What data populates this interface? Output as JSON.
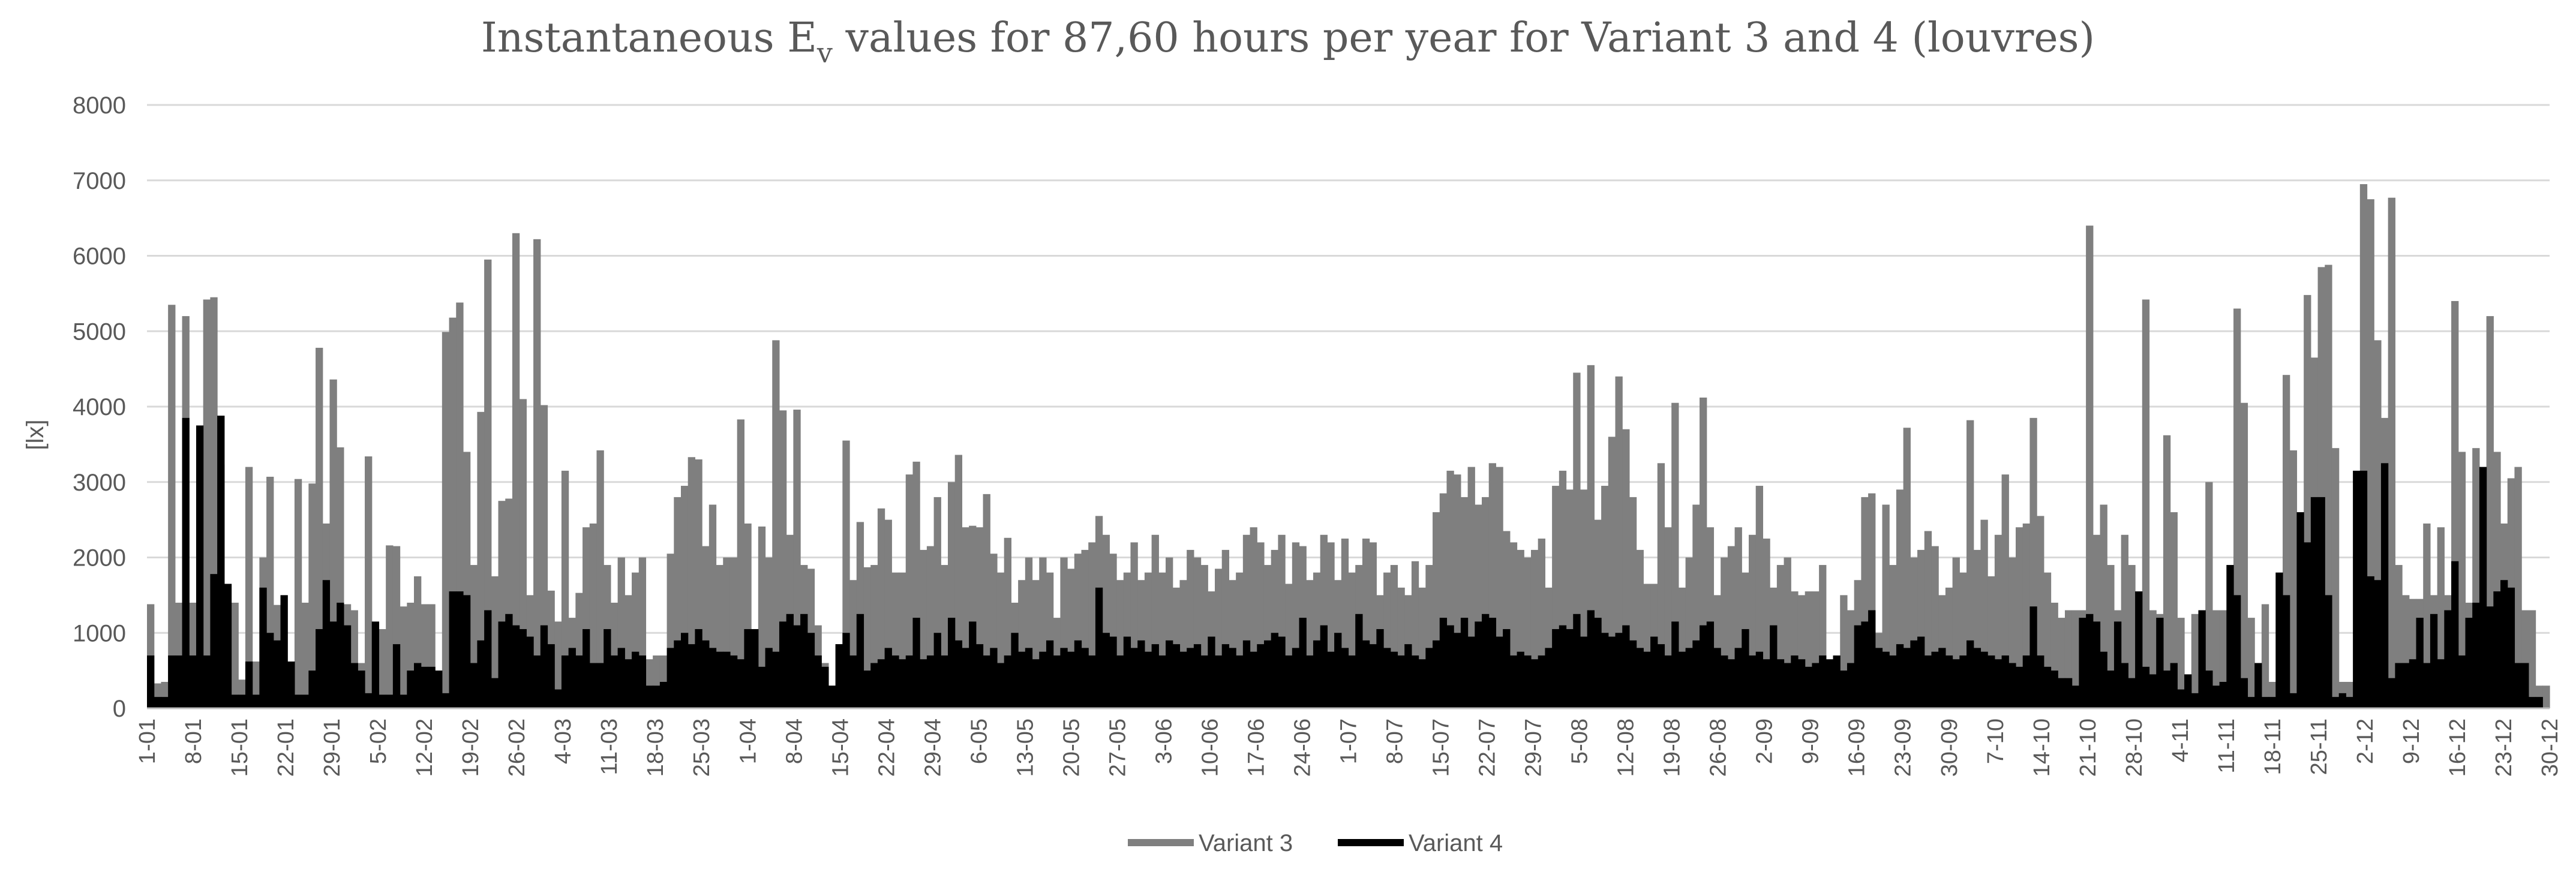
{
  "chart_data": {
    "type": "bar",
    "title": {
      "prefix": "Instantaneous E",
      "subscript": "v",
      "suffix": " values for 87,60 hours per year for Variant 3 and 4 (louvres)"
    },
    "xlabel": "",
    "ylabel": "[lx]",
    "ylim": [
      0,
      8000
    ],
    "yticks": [
      0,
      1000,
      2000,
      3000,
      4000,
      5000,
      6000,
      7000,
      8000
    ],
    "grid": true,
    "legend_position": "bottom-center",
    "x_tick_labels": [
      "1-01",
      "8-01",
      "15-01",
      "22-01",
      "29-01",
      "5-02",
      "12-02",
      "19-02",
      "26-02",
      "4-03",
      "11-03",
      "18-03",
      "25-03",
      "1-04",
      "8-04",
      "15-04",
      "22-04",
      "29-04",
      "6-05",
      "13-05",
      "20-05",
      "27-05",
      "3-06",
      "10-06",
      "17-06",
      "24-06",
      "1-07",
      "8-07",
      "15-07",
      "22-07",
      "29-07",
      "5-08",
      "12-08",
      "19-08",
      "26-08",
      "2-09",
      "9-09",
      "16-09",
      "23-09",
      "30-09",
      "7-10",
      "14-10",
      "21-10",
      "28-10",
      "4-11",
      "11-11",
      "18-11",
      "25-11",
      "2-12",
      "9-12",
      "16-12",
      "23-12",
      "30-12"
    ],
    "series": [
      {
        "name": "Variant 3",
        "color": "#7f7f7f",
        "values": [
          1380,
          330,
          350,
          5350,
          1400,
          5200,
          1400,
          2780,
          5420,
          5450,
          3230,
          500,
          1400,
          380,
          3200,
          620,
          2000,
          3070,
          1370,
          380,
          380,
          3040,
          1400,
          2980,
          4780,
          2450,
          4360,
          3460,
          1380,
          1300,
          600,
          3340,
          470,
          1050,
          2160,
          2150,
          1350,
          1400,
          1750,
          1380,
          1380,
          500,
          4990,
          5180,
          5380,
          3400,
          1900,
          3930,
          5950,
          1750,
          2750,
          2780,
          6300,
          4100,
          1500,
          6220,
          4020,
          1560,
          1150,
          3150,
          1200,
          1530,
          2400,
          2450,
          3420,
          1900,
          1400,
          2000,
          1500,
          1800,
          2000,
          650,
          700,
          700,
          2050,
          2800,
          2950,
          3330,
          3300,
          2150,
          2700,
          1900,
          2000,
          2000,
          3830,
          2450,
          850,
          2410,
          2000,
          4880,
          3950,
          2300,
          3960,
          1900,
          1850,
          1100,
          600,
          300,
          850,
          3550,
          1700,
          2470,
          1870,
          1900,
          2650,
          2500,
          1800,
          1800,
          3100,
          3270,
          2100,
          2150,
          2800,
          1900,
          3000,
          3360,
          2400,
          2420,
          2400,
          2840,
          2050,
          1800,
          2260,
          1400,
          1700,
          2000,
          1700,
          2000,
          1800,
          1200,
          2000,
          1850,
          2050,
          2100,
          2200,
          2550,
          2300,
          2050,
          1700,
          1800,
          2200,
          1700,
          1800,
          2300,
          1800,
          2000,
          1600,
          1700,
          2100,
          2000,
          1900,
          1550,
          1850,
          2100,
          1700,
          1800,
          2300,
          2400,
          2200,
          1900,
          2100,
          2300,
          1650,
          2200,
          2150,
          1700,
          1800,
          2300,
          2200,
          1700,
          2250,
          1800,
          1900,
          2250,
          2200,
          1500,
          1800,
          1900,
          1600,
          1500,
          1950,
          1600,
          1900,
          2600,
          2850,
          3150,
          3100,
          2800,
          3200,
          2700,
          2800,
          3250,
          3200,
          2350,
          2200,
          2100,
          2000,
          2100,
          2250,
          1600,
          2950,
          3150,
          2900,
          4450,
          2900,
          4550,
          2500,
          2950,
          3600,
          4400,
          3700,
          2800,
          2100,
          1650,
          1650,
          3250,
          2400,
          4050,
          1600,
          2000,
          2700,
          4120,
          2400,
          1500,
          2000,
          2150,
          2400,
          1800,
          2300,
          2950,
          2250,
          1600,
          1900,
          2000,
          1550,
          1500,
          1550,
          1550,
          1900,
          600,
          600,
          1500,
          1300,
          1700,
          2800,
          2850,
          1000,
          2700,
          1900,
          2900,
          3720,
          2000,
          2100,
          2350,
          2150,
          1500,
          1600,
          2000,
          1800,
          3820,
          2100,
          2500,
          1750,
          2300,
          3100,
          2000,
          2400,
          2450,
          3850,
          2550,
          1800,
          1400,
          1200,
          1300,
          1300,
          1300,
          6400,
          2300,
          2700,
          1900,
          1300,
          2300,
          1900,
          1300,
          5420,
          1300,
          1250,
          3620,
          2600,
          1200,
          350,
          1250,
          300,
          3000,
          1300,
          1300,
          1200,
          5300,
          4050,
          1200,
          300,
          1380,
          350,
          350,
          4420,
          3420,
          300,
          5480,
          4650,
          5850,
          5880,
          3450,
          350,
          350,
          300,
          6950,
          6750,
          4880,
          3850,
          6770,
          1900,
          1500,
          1450,
          1450,
          2450,
          1500,
          2400,
          1500,
          5400,
          3400,
          1400,
          3450,
          2600,
          5200,
          3400,
          2450,
          3050,
          3200,
          1300,
          1300,
          300,
          300
        ]
      },
      {
        "name": "Variant 4",
        "color": "#000000",
        "values": [
          700,
          150,
          150,
          700,
          700,
          3850,
          700,
          3750,
          700,
          1780,
          3880,
          1650,
          180,
          180,
          620,
          180,
          1600,
          1000,
          900,
          1500,
          620,
          180,
          180,
          500,
          1050,
          1700,
          1150,
          1400,
          1100,
          600,
          500,
          200,
          1150,
          180,
          180,
          850,
          180,
          500,
          600,
          550,
          550,
          500,
          200,
          1550,
          1550,
          1500,
          600,
          900,
          1300,
          400,
          1150,
          1250,
          1100,
          1050,
          950,
          700,
          1100,
          850,
          250,
          700,
          800,
          700,
          1050,
          600,
          600,
          1050,
          700,
          800,
          650,
          750,
          700,
          300,
          300,
          350,
          800,
          900,
          1000,
          850,
          1050,
          900,
          800,
          750,
          750,
          700,
          650,
          1050,
          1050,
          550,
          800,
          750,
          1150,
          1250,
          1100,
          1250,
          1000,
          700,
          550,
          300,
          850,
          1000,
          700,
          1250,
          500,
          600,
          650,
          800,
          700,
          650,
          700,
          1200,
          650,
          700,
          1000,
          700,
          1200,
          900,
          800,
          1150,
          850,
          700,
          800,
          600,
          700,
          1000,
          750,
          800,
          650,
          750,
          900,
          700,
          800,
          750,
          900,
          800,
          700,
          1600,
          1000,
          950,
          700,
          950,
          800,
          900,
          750,
          850,
          700,
          900,
          850,
          750,
          800,
          850,
          700,
          950,
          700,
          850,
          800,
          700,
          900,
          750,
          850,
          900,
          1000,
          950,
          700,
          800,
          1200,
          700,
          900,
          1100,
          750,
          1000,
          800,
          700,
          1250,
          900,
          850,
          1050,
          800,
          750,
          700,
          850,
          700,
          650,
          800,
          900,
          1200,
          1100,
          1000,
          1200,
          950,
          1150,
          1250,
          1200,
          950,
          1050,
          700,
          750,
          700,
          650,
          700,
          800,
          1050,
          1100,
          1050,
          1250,
          950,
          1300,
          1200,
          1000,
          950,
          1000,
          1100,
          900,
          800,
          750,
          950,
          850,
          700,
          1150,
          750,
          800,
          900,
          1100,
          1150,
          800,
          700,
          650,
          800,
          1050,
          700,
          750,
          650,
          1100,
          650,
          600,
          700,
          650,
          550,
          600,
          700,
          650,
          700,
          500,
          600,
          1100,
          1150,
          1300,
          800,
          750,
          700,
          850,
          800,
          900,
          950,
          700,
          750,
          800,
          700,
          650,
          700,
          900,
          800,
          750,
          700,
          650,
          700,
          600,
          550,
          700,
          1350,
          700,
          550,
          500,
          400,
          400,
          300,
          1200,
          1250,
          1150,
          750,
          500,
          1150,
          600,
          400,
          1550,
          550,
          450,
          1200,
          500,
          600,
          250,
          450,
          200,
          1300,
          500,
          300,
          350,
          1900,
          1500,
          400,
          150,
          600,
          150,
          150,
          1800,
          1500,
          200,
          2600,
          2200,
          2800,
          2800,
          1500,
          150,
          200,
          150,
          3150,
          3150,
          1750,
          1700,
          3250,
          400,
          600,
          600,
          650,
          1200,
          600,
          1250,
          650,
          1300,
          1950,
          700,
          1200,
          1400,
          3200,
          1350,
          1550,
          1700,
          1600,
          600,
          600,
          150,
          150
        ]
      }
    ]
  }
}
